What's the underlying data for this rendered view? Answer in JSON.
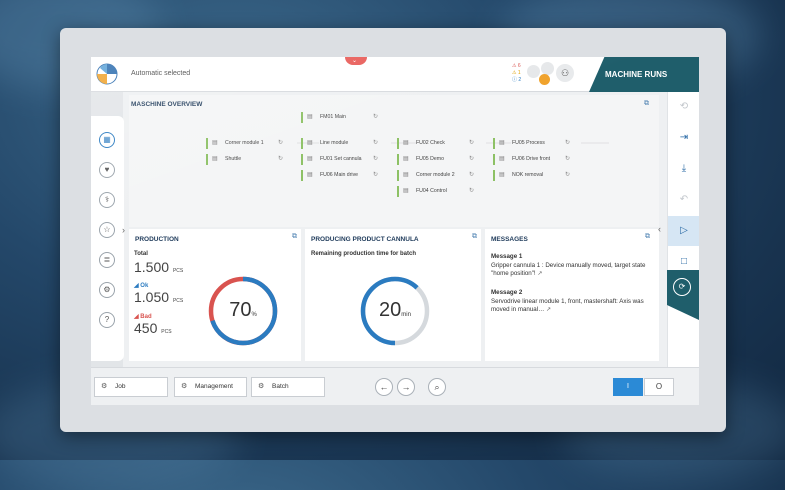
{
  "header": {
    "status_text": "Automatic selected",
    "alarm_count_red": "6",
    "alarm_count_yellow": "1",
    "info_count": "2",
    "machine_state": "MACHINE RUNS"
  },
  "overview": {
    "title": "MASCHINE OVERVIEW",
    "nodes": [
      {
        "label": "FM01 Main"
      },
      {
        "label": "Corner module 1"
      },
      {
        "label": "Line module"
      },
      {
        "label": "FU02 Check"
      },
      {
        "label": "FU05 Process"
      },
      {
        "label": "Shuttle"
      },
      {
        "label": "FU01 Set cannula"
      },
      {
        "label": "FU05 Demo"
      },
      {
        "label": "FU06 Drive front"
      },
      {
        "label": "FU06 Main drive"
      },
      {
        "label": "Corner module 2"
      },
      {
        "label": "NOK removal"
      },
      {
        "label": "FU04 Control"
      }
    ]
  },
  "production": {
    "title": "PRODUCTION",
    "total_label": "Total",
    "total_value": "1.500",
    "total_unit": "PCS",
    "ok_label": "Ok",
    "ok_value": "1.050",
    "ok_unit": "PCS",
    "bad_label": "Bad",
    "bad_value": "450",
    "bad_unit": "PCS",
    "gauge_percent_text": "70",
    "gauge_unit": "%",
    "gauge_fraction": 0.7
  },
  "producing": {
    "title": "PRODUCING PRODUCT CANNULA",
    "subtitle": "Remaining production time for batch",
    "remaining_value": "20",
    "remaining_unit": "min",
    "gauge_fraction": 0.62
  },
  "messages": {
    "title": "MESSAGES",
    "items": [
      {
        "title": "Message 1",
        "text": "Gripper cannula 1 : Device manually moved, target state \"home position\"!"
      },
      {
        "title": "Message 2",
        "text": "Servodrive linear module 1, front, mastershaft: Axis was moved in manual…"
      }
    ]
  },
  "bottom": {
    "job_label": "Job",
    "management_label": "Management",
    "batch_label": "Batch",
    "toggle_on_label": "I",
    "toggle_off_label": "O"
  },
  "colors": {
    "teal": "#1f5e6b",
    "blue": "#2b7bc0",
    "red": "#d9534f",
    "green": "#8dc165"
  }
}
